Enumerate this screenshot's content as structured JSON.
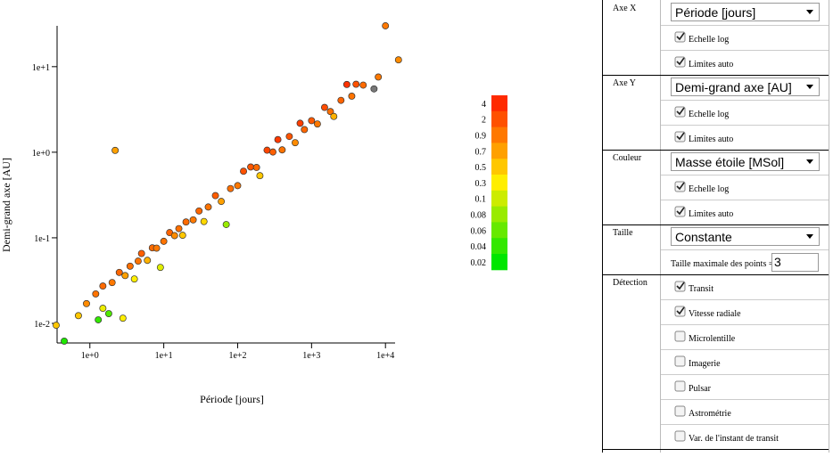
{
  "chart_data": {
    "type": "scatter",
    "xlabel": "Période [jours]",
    "ylabel": "Demi-grand axe [AU]",
    "xscale": "log",
    "yscale": "log",
    "xlim": [
      0.36,
      13500
    ],
    "ylim": [
      0.0059,
      30
    ],
    "xticks": [
      {
        "value": 1,
        "label": "1e+0"
      },
      {
        "value": 10,
        "label": "1e+1"
      },
      {
        "value": 100,
        "label": "1e+2"
      },
      {
        "value": 1000,
        "label": "1e+3"
      },
      {
        "value": 10000,
        "label": "1e+4"
      }
    ],
    "yticks": [
      {
        "value": 0.01,
        "label": "1e-2"
      },
      {
        "value": 0.1,
        "label": "1e-1"
      },
      {
        "value": 1,
        "label": "1e+0"
      },
      {
        "value": 10,
        "label": "1e+1"
      }
    ],
    "x": [
      0.7,
      0.9,
      1.2,
      1.5,
      1.5,
      2,
      2.5,
      3,
      3.5,
      4,
      4.5,
      5,
      6,
      7,
      8,
      9,
      10,
      12,
      14,
      16,
      18,
      20,
      25,
      30,
      35,
      40,
      50,
      60,
      70,
      80,
      100,
      120,
      150,
      180,
      200,
      250,
      300,
      350,
      400,
      500,
      600,
      700,
      800,
      1000,
      1200,
      1500,
      1800,
      2000,
      2500,
      3000,
      3500,
      4000,
      5000,
      7000,
      8000,
      10000,
      15000,
      2.2,
      0.45,
      0.35,
      1.3,
      1.8,
      2.8
    ],
    "values": [
      0.0123,
      0.017,
      0.0221,
      0.015,
      0.0273,
      0.03,
      0.0394,
      0.0362,
      0.0466,
      0.033,
      0.0534,
      0.0656,
      0.0545,
      0.0763,
      0.0757,
      0.0451,
      0.091,
      0.115,
      0.106,
      0.128,
      0.107,
      0.153,
      0.162,
      0.206,
      0.155,
      0.229,
      0.311,
      0.266,
      0.143,
      0.376,
      0.407,
      0.6,
      0.672,
      0.664,
      0.532,
      1.056,
      1.006,
      1.405,
      1.065,
      1.53,
      1.293,
      2.18,
      1.84,
      2.34,
      2.14,
      3.34,
      2.99,
      2.62,
      4.04,
      6.19,
      4.52,
      6.23,
      6.09,
      5.5,
      7.57,
      30,
      12,
      1.05,
      0.0062,
      0.0095,
      0.011,
      0.013,
      0.0115
    ],
    "mass": [
      0.5,
      0.8,
      1.0,
      0.2,
      1.2,
      0.9,
      1.3,
      0.7,
      1.1,
      0.3,
      1.0,
      1.5,
      0.6,
      1.2,
      0.9,
      0.15,
      1.0,
      1.4,
      0.8,
      1.1,
      0.5,
      1.2,
      0.9,
      1.3,
      0.4,
      1.0,
      1.6,
      0.7,
      0.08,
      1.1,
      0.9,
      2.0,
      1.8,
      1.2,
      0.5,
      2.5,
      1.5,
      3.0,
      1.0,
      1.9,
      0.8,
      2.8,
      1.3,
      1.7,
      0.9,
      2.2,
      1.1,
      0.6,
      1.4,
      3.5,
      1.0,
      2.0,
      1.2,
      null,
      0.9,
      0.9,
      0.8,
      0.7,
      0.03,
      0.5,
      0.04,
      0.05,
      0.3
    ],
    "colorbar": {
      "ticks": [
        4,
        2,
        0.9,
        0.7,
        0.5,
        0.3,
        0.1,
        0.08,
        0.06,
        0.04,
        0.02
      ],
      "colors": [
        "#ff2a00",
        "#ffee00",
        "#00e600"
      ],
      "missing_color": "#777777"
    }
  },
  "controls": [
    {
      "label": "Axe X",
      "select": "Période [jours]",
      "checks": [
        {
          "label": "Echelle log",
          "checked": true
        },
        {
          "label": "Limites auto",
          "checked": true
        }
      ]
    },
    {
      "label": "Axe Y",
      "select": "Demi-grand axe [AU]",
      "checks": [
        {
          "label": "Echelle log",
          "checked": true
        },
        {
          "label": "Limites auto",
          "checked": true
        }
      ]
    },
    {
      "label": "Couleur",
      "select": "Masse étoile [MSol]",
      "checks": [
        {
          "label": "Echelle log",
          "checked": true
        },
        {
          "label": "Limites auto",
          "checked": true
        }
      ]
    },
    {
      "label": "Taille",
      "select": "Constante",
      "input": {
        "label": "Taille maximale des points =",
        "value": "3"
      }
    },
    {
      "label": "Détection",
      "checks": [
        {
          "label": "Transit",
          "checked": true
        },
        {
          "label": "Vitesse radiale",
          "checked": true
        },
        {
          "label": "Microlentille",
          "checked": false
        },
        {
          "label": "Imagerie",
          "checked": false
        },
        {
          "label": "Pulsar",
          "checked": false
        },
        {
          "label": "Astrométrie",
          "checked": false
        },
        {
          "label": "Var. de l'instant de transit",
          "checked": false
        }
      ]
    }
  ]
}
